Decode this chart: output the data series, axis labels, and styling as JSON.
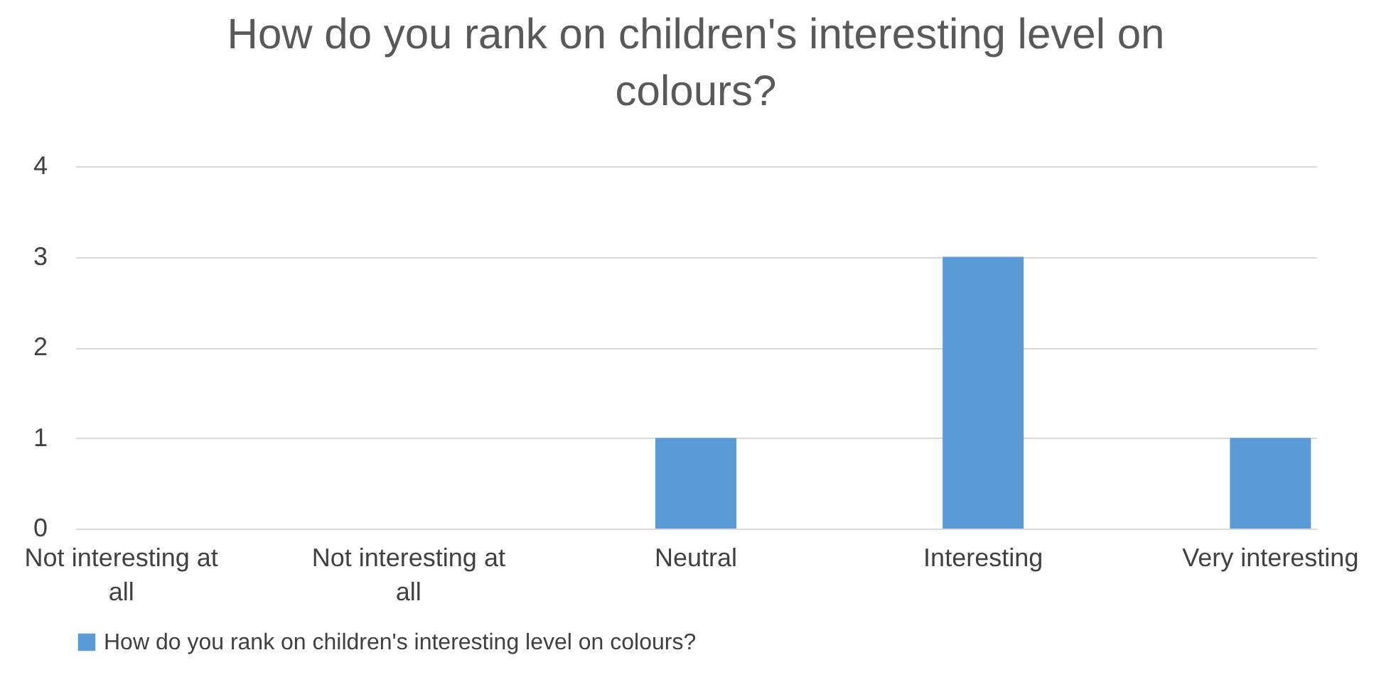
{
  "chart_data": {
    "type": "bar",
    "title": "How do you rank on children's interesting level on colours?",
    "categories": [
      "Not interesting at all",
      "Not interesting at all",
      "Neutral",
      "Interesting",
      "Very interesting"
    ],
    "series": [
      {
        "name": "How do you rank on children's interesting level on colours?",
        "color": "#5b9bd5",
        "values": [
          0,
          0,
          1,
          3,
          1
        ]
      }
    ],
    "ylim": [
      0,
      4
    ],
    "yticks": [
      0,
      1,
      2,
      3,
      4
    ],
    "grid": "y",
    "legend": "bottom"
  }
}
